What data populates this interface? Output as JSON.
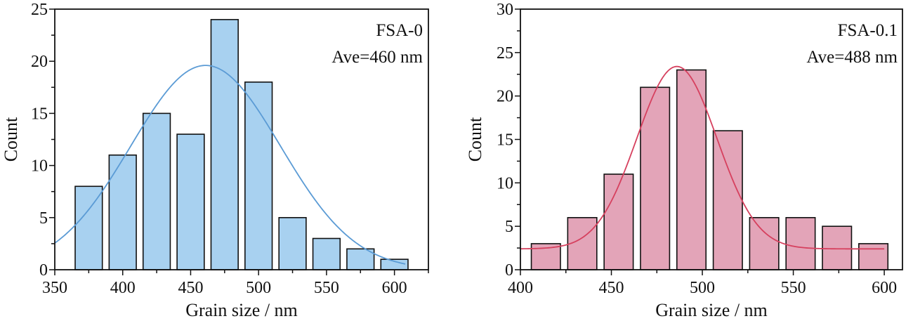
{
  "chart_data": [
    {
      "type": "bar",
      "annotation_lines": [
        "FSA-0",
        "Ave=460 nm"
      ],
      "xlabel": "Grain size / nm",
      "ylabel": "Count",
      "xlim": [
        350,
        625
      ],
      "ylim": [
        0,
        25
      ],
      "xticks": [
        350,
        400,
        450,
        500,
        550,
        600
      ],
      "yticks": [
        0,
        5,
        10,
        15,
        20,
        25
      ],
      "bin_width": 25,
      "bin_centers": [
        375,
        400,
        425,
        450,
        475,
        500,
        525,
        550,
        575,
        600
      ],
      "values": [
        8,
        11,
        15,
        13,
        24,
        18,
        5,
        3,
        2,
        1
      ],
      "fit": {
        "type": "gaussian",
        "mean": 461,
        "sigma": 55,
        "amplitude": 19.6,
        "baseline": 0,
        "x_range": [
          350,
          608
        ]
      },
      "colors": {
        "bar": "#a8d1f0",
        "fit": "#5b9bd5"
      },
      "grid": false,
      "legend": "none"
    },
    {
      "type": "bar",
      "annotation_lines": [
        "FSA-0.1",
        "Ave=488 nm"
      ],
      "xlabel": "Grain size / nm",
      "ylabel": "Count",
      "xlim": [
        400,
        610
      ],
      "ylim": [
        0,
        30
      ],
      "xticks": [
        400,
        450,
        500,
        550,
        600
      ],
      "yticks": [
        0,
        5,
        10,
        15,
        20,
        25,
        30
      ],
      "bin_width": 20,
      "bin_centers": [
        414,
        434,
        454,
        474,
        494,
        514,
        534,
        554,
        574,
        594
      ],
      "values": [
        3,
        6,
        11,
        21,
        23,
        16,
        6,
        6,
        5,
        3
      ],
      "fit": {
        "type": "gaussian",
        "mean": 486,
        "sigma": 22,
        "amplitude": 21,
        "baseline": 2.4,
        "x_range": [
          400,
          600
        ]
      },
      "colors": {
        "bar": "#e3a4b8",
        "fit": "#d6405e"
      },
      "grid": false,
      "legend": "none"
    }
  ]
}
